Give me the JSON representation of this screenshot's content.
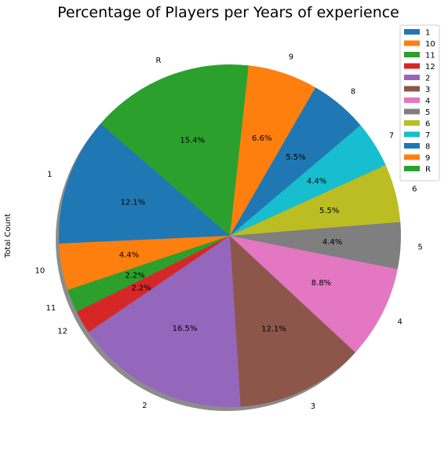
{
  "chart_data": {
    "type": "pie",
    "title": "Percentage of Players per Years of experience",
    "ylabel": "Total Count",
    "start_angle_deg": 139.1,
    "slices": [
      {
        "label": "1",
        "value": 12.1,
        "pct_text": "12.1%",
        "color": "#1f77b4"
      },
      {
        "label": "10",
        "value": 4.4,
        "pct_text": "4.4%",
        "color": "#ff7f0e"
      },
      {
        "label": "11",
        "value": 2.2,
        "pct_text": "2.2%",
        "color": "#2ca02c"
      },
      {
        "label": "12",
        "value": 2.2,
        "pct_text": "2.2%",
        "color": "#d62728"
      },
      {
        "label": "2",
        "value": 16.5,
        "pct_text": "16.5%",
        "color": "#9467bd"
      },
      {
        "label": "3",
        "value": 12.1,
        "pct_text": "12.1%",
        "color": "#8c564b"
      },
      {
        "label": "4",
        "value": 8.8,
        "pct_text": "8.8%",
        "color": "#e377c2"
      },
      {
        "label": "5",
        "value": 4.4,
        "pct_text": "4.4%",
        "color": "#7f7f7f"
      },
      {
        "label": "6",
        "value": 5.5,
        "pct_text": "5.5%",
        "color": "#bcbd22"
      },
      {
        "label": "7",
        "value": 4.4,
        "pct_text": "4.4%",
        "color": "#17becf"
      },
      {
        "label": "8",
        "value": 5.5,
        "pct_text": "5.5%",
        "color": "#1f77b4"
      },
      {
        "label": "9",
        "value": 6.6,
        "pct_text": "6.6%",
        "color": "#ff7f0e"
      },
      {
        "label": "R",
        "value": 15.4,
        "pct_text": "15.4%",
        "color": "#2ca02c"
      }
    ],
    "legend": {
      "placement": "top-right",
      "entries": [
        "1",
        "10",
        "11",
        "12",
        "2",
        "3",
        "4",
        "5",
        "6",
        "7",
        "8",
        "9",
        "R"
      ]
    },
    "shadow": true
  }
}
